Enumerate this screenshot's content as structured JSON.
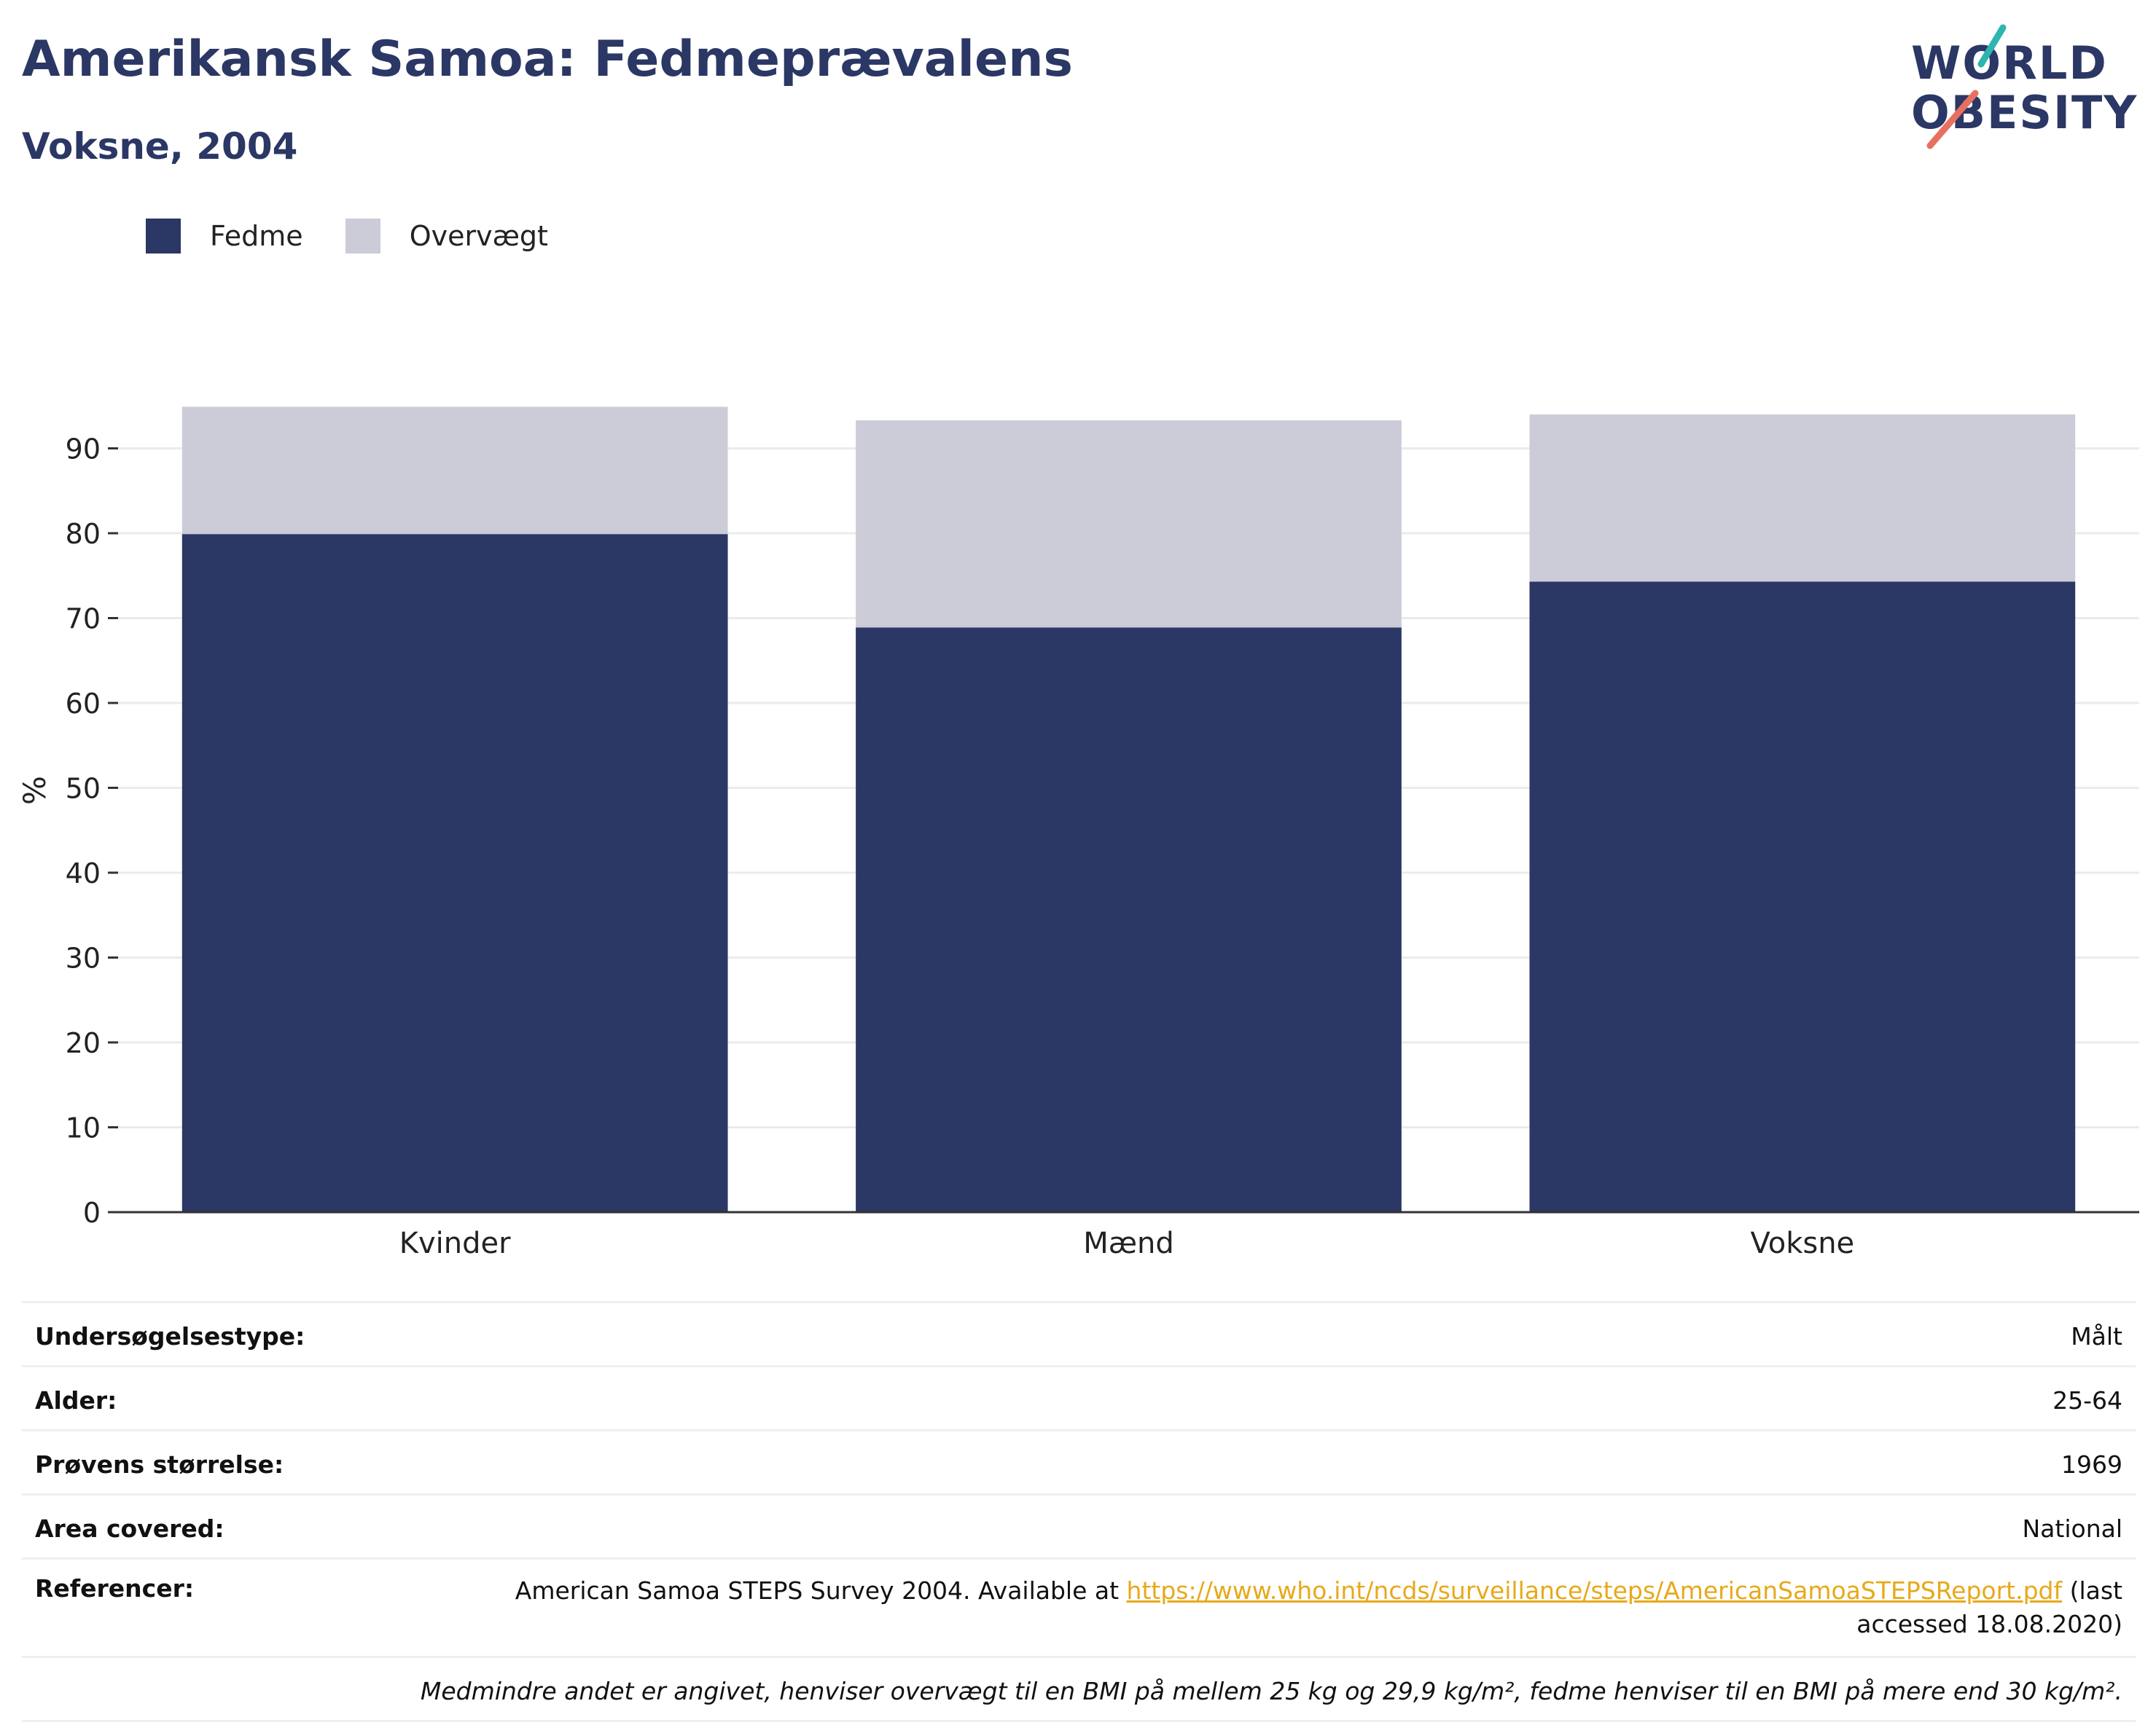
{
  "header": {
    "title": "Amerikansk Samoa: Fedmeprævalens",
    "subtitle": "Voksne, 2004"
  },
  "logo": {
    "line1": "WORLD",
    "line2": "OBESITY"
  },
  "colors": {
    "obesity": "#2b3764",
    "overweight": "#cbccd8",
    "title": "#2b3764",
    "link": "#e7a91b"
  },
  "chart_data": {
    "type": "bar",
    "stacked": true,
    "categories": [
      "Kvinder",
      "Mænd",
      "Voksne"
    ],
    "series": [
      {
        "name": "Fedme",
        "values": [
          79.9,
          68.9,
          74.3
        ]
      },
      {
        "name": "Overvægt",
        "values": [
          15.0,
          24.4,
          19.7
        ]
      }
    ],
    "ylabel": "%",
    "ylim": [
      0,
      95
    ],
    "yticks": [
      0,
      10,
      20,
      30,
      40,
      50,
      60,
      70,
      80,
      90
    ],
    "grid": true,
    "legend_position": "top-left"
  },
  "info": {
    "rows": [
      {
        "label": "Undersøgelsestype:",
        "value": "Målt"
      },
      {
        "label": "Alder:",
        "value": "25-64"
      },
      {
        "label": "Prøvens størrelse:",
        "value": "1969"
      },
      {
        "label": "Area covered:",
        "value": "National"
      }
    ],
    "references": {
      "label": "Referencer:",
      "text_before": "American Samoa STEPS Survey 2004. Available at ",
      "link": "https://www.who.int/ncds/surveillance/steps/AmericanSamoaSTEPSReport.pdf",
      "text_after": " (last accessed 18.08.2020)"
    },
    "note": "Medmindre andet er angivet, henviser overvægt til en BMI på mellem 25 kg og 29,9 kg/m², fedme henviser til en BMI på mere end 30 kg/m²."
  }
}
